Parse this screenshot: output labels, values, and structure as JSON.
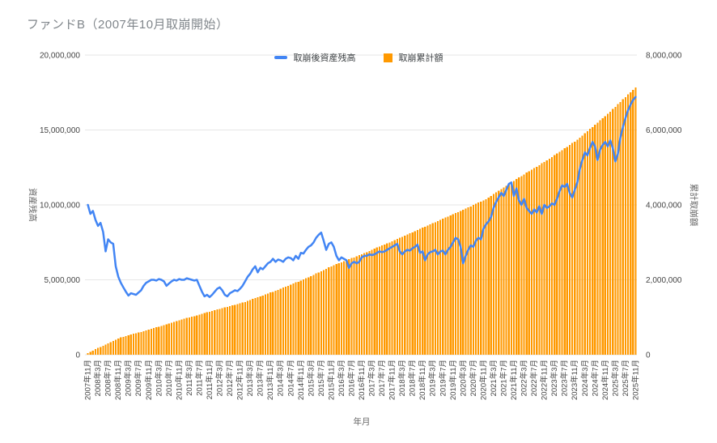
{
  "title": "ファンドB（2007年10月取崩開始）",
  "legend": {
    "line_label": "取崩後資産残高",
    "bar_label": "取崩累計額"
  },
  "colors": {
    "line": "#4285F4",
    "bar": "#FF9900",
    "grid": "#e6e6e6",
    "tick_text": "#444444",
    "axis_title_text": "#666666",
    "title_text": "#80868b"
  },
  "chart_data": {
    "type": "bar",
    "subtype": "combo: monthly bars (right axis) + line (left axis)",
    "title": "ファンドB（2007年10月取崩開始）",
    "xlabel": "年月",
    "x_start": "2007年11月",
    "x_end": "2025年11月",
    "x_interval": "monthly (217 points), labels every 4 months",
    "grid": true,
    "legend_position": "top-center",
    "unit": "million yen",
    "left_axis": {
      "title": "資産残高",
      "min": 0,
      "max": 20,
      "ticks": [
        "0",
        "5,000,000",
        "10,000,000",
        "15,000,000",
        "20,000,000"
      ]
    },
    "right_axis": {
      "title": "累計取崩額",
      "min": 0,
      "max": 8,
      "ticks": [
        "0",
        "2,000,000",
        "4,000,000",
        "6,000,000",
        "8,000,000"
      ]
    },
    "x_tick_labels": [
      "2007年11月",
      "2008年3月",
      "2008年7月",
      "2008年11月",
      "2009年3月",
      "2009年7月",
      "2009年11月",
      "2010年3月",
      "2010年7月",
      "2010年11月",
      "2011年3月",
      "2011年7月",
      "2011年11月",
      "2012年3月",
      "2012年7月",
      "2012年11月",
      "2013年3月",
      "2013年7月",
      "2013年11月",
      "2014年3月",
      "2014年7月",
      "2014年11月",
      "2015年3月",
      "2015年7月",
      "2015年11月",
      "2016年3月",
      "2016年7月",
      "2016年11月",
      "2017年3月",
      "2017年7月",
      "2017年11月",
      "2018年3月",
      "2018年7月",
      "2018年11月",
      "2019年3月",
      "2019年7月",
      "2019年11月",
      "2020年3月",
      "2020年7月",
      "2020年11月",
      "2021年3月",
      "2021年7月",
      "2021年11月",
      "2022年3月",
      "2022年7月",
      "2022年11月",
      "2023年3月",
      "2023年7月",
      "2023年11月",
      "2024年3月",
      "2024年7月",
      "2024年11月",
      "2025年3月",
      "2025年7月",
      "2025年11月"
    ],
    "series": [
      {
        "name": "取崩後資産残高",
        "chart_type": "line",
        "axis": "left",
        "color": "#4285F4",
        "values": [
          10,
          9.4,
          9.6,
          9,
          8.6,
          8.8,
          8.2,
          6.9,
          7.7,
          7.5,
          7.4,
          5.9,
          5.2,
          4.8,
          4.5,
          4.2,
          3.95,
          4.1,
          4.05,
          4,
          4.15,
          4.3,
          4.6,
          4.8,
          4.9,
          5,
          5,
          4.95,
          5.05,
          5,
          4.9,
          4.6,
          4.75,
          4.9,
          5,
          4.95,
          5.05,
          5,
          5,
          5.1,
          5.05,
          5,
          4.95,
          5,
          4.6,
          4.2,
          3.9,
          4,
          3.85,
          4,
          4.2,
          4.4,
          4.5,
          4.3,
          4,
          3.9,
          4.1,
          4.2,
          4.3,
          4.25,
          4.4,
          4.6,
          4.9,
          5.2,
          5.4,
          5.7,
          5.9,
          5.5,
          5.8,
          5.7,
          5.9,
          6.1,
          6.2,
          6.4,
          6.2,
          6.35,
          6.3,
          6.2,
          6.4,
          6.5,
          6.45,
          6.3,
          6.6,
          6.4,
          6.8,
          6.75,
          7,
          7.2,
          7.3,
          7.5,
          7.8,
          8,
          8.15,
          7.6,
          7,
          7.4,
          7.5,
          7.2,
          6.6,
          6.3,
          6.5,
          6.4,
          6.3,
          5.8,
          6.1,
          6.2,
          6.1,
          6.2,
          6.5,
          6.6,
          6.6,
          6.7,
          6.65,
          6.7,
          6.8,
          6.9,
          6.85,
          6.9,
          7,
          7.1,
          7.2,
          7.3,
          7.4,
          6.9,
          6.7,
          6.9,
          7,
          6.95,
          7.1,
          7.2,
          7.35,
          6.8,
          6.9,
          6.3,
          6.7,
          6.85,
          6.9,
          7,
          6.7,
          6.9,
          6.95,
          6.7,
          7,
          7.2,
          7.5,
          7.8,
          7.7,
          7.2,
          6.1,
          6.6,
          7,
          7.3,
          7.2,
          7.6,
          7.8,
          7.7,
          8.4,
          8.7,
          8.9,
          9.2,
          9.8,
          10.2,
          10.5,
          10.8,
          10.6,
          11,
          11.4,
          11.5,
          10.6,
          11.1,
          10.3,
          10,
          10.4,
          9.8,
          9.6,
          9.4,
          9.7,
          9.5,
          9.9,
          9.4,
          10,
          9.8,
          9.9,
          10.1,
          10,
          10.4,
          10.9,
          11.3,
          11.2,
          11.4,
          10.8,
          10.5,
          11,
          11.5,
          12.4,
          13,
          13.5,
          13.3,
          13.8,
          14.2,
          13.9,
          13,
          13.7,
          14,
          14.2,
          13.9,
          14.3,
          13.8,
          12.9,
          13.4,
          14.5,
          15.2,
          15.8,
          16.3,
          16.7,
          17,
          17.2
        ]
      },
      {
        "name": "取崩累計額",
        "chart_type": "bar",
        "axis": "right",
        "color": "#FF9900",
        "values": [
          0.04,
          0.08,
          0.11,
          0.15,
          0.18,
          0.21,
          0.24,
          0.27,
          0.3,
          0.34,
          0.37,
          0.4,
          0.43,
          0.46,
          0.48,
          0.5,
          0.52,
          0.54,
          0.56,
          0.57,
          0.59,
          0.61,
          0.63,
          0.65,
          0.67,
          0.69,
          0.71,
          0.73,
          0.75,
          0.77,
          0.79,
          0.81,
          0.83,
          0.85,
          0.88,
          0.9,
          0.92,
          0.94,
          0.96,
          0.98,
          1.0,
          1.02,
          1.03,
          1.05,
          1.07,
          1.09,
          1.11,
          1.13,
          1.15,
          1.17,
          1.19,
          1.21,
          1.22,
          1.24,
          1.26,
          1.28,
          1.3,
          1.32,
          1.33,
          1.35,
          1.37,
          1.39,
          1.41,
          1.44,
          1.46,
          1.49,
          1.51,
          1.53,
          1.56,
          1.58,
          1.61,
          1.63,
          1.66,
          1.68,
          1.71,
          1.73,
          1.76,
          1.79,
          1.82,
          1.84,
          1.87,
          1.9,
          1.93,
          1.95,
          1.98,
          2.01,
          2.04,
          2.07,
          2.1,
          2.13,
          2.17,
          2.2,
          2.23,
          2.26,
          2.29,
          2.33,
          2.36,
          2.39,
          2.42,
          2.44,
          2.47,
          2.5,
          2.52,
          2.55,
          2.58,
          2.6,
          2.63,
          2.66,
          2.68,
          2.71,
          2.74,
          2.77,
          2.8,
          2.83,
          2.86,
          2.89,
          2.92,
          2.94,
          2.97,
          3.0,
          3.03,
          3.06,
          3.09,
          3.12,
          3.15,
          3.18,
          3.21,
          3.24,
          3.27,
          3.3,
          3.33,
          3.36,
          3.39,
          3.42,
          3.45,
          3.48,
          3.51,
          3.54,
          3.57,
          3.6,
          3.63,
          3.66,
          3.69,
          3.72,
          3.75,
          3.78,
          3.81,
          3.84,
          3.87,
          3.9,
          3.93,
          3.96,
          4.0,
          4.03,
          4.06,
          4.09,
          4.12,
          4.15,
          4.2,
          4.24,
          4.29,
          4.33,
          4.38,
          4.42,
          4.47,
          4.51,
          4.55,
          4.6,
          4.64,
          4.69,
          4.73,
          4.77,
          4.81,
          4.86,
          4.9,
          4.94,
          4.98,
          5.02,
          5.06,
          5.11,
          5.15,
          5.19,
          5.23,
          5.28,
          5.33,
          5.37,
          5.42,
          5.46,
          5.51,
          5.55,
          5.6,
          5.65,
          5.69,
          5.74,
          5.79,
          5.85,
          5.91,
          5.97,
          6.03,
          6.08,
          6.14,
          6.2,
          6.26,
          6.31,
          6.37,
          6.43,
          6.49,
          6.56,
          6.62,
          6.69,
          6.75,
          6.82,
          6.88,
          6.95,
          7.01,
          7.07,
          7.14
        ]
      }
    ]
  }
}
